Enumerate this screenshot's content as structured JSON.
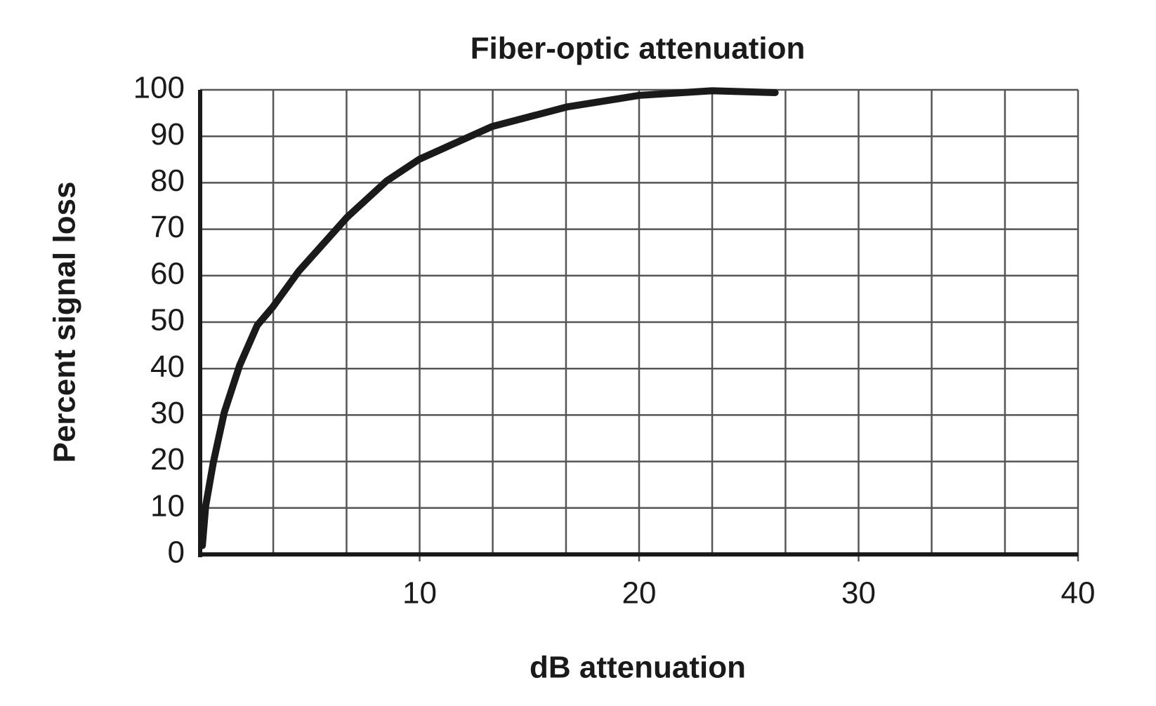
{
  "chart_data": {
    "type": "line",
    "title": "Fiber-optic attenuation",
    "x_label": "dB attenuation",
    "y_label": "Percent signal loss",
    "x": [
      0.1,
      0.25,
      0.6,
      1.1,
      1.8,
      2.6,
      3.3,
      4.5,
      6.7,
      8.5,
      10,
      13.3,
      16.7,
      20,
      23.3,
      26.2
    ],
    "series": [
      {
        "color": "#1a1a1a",
        "values": [
          1.9,
          10.4,
          19.8,
          30.6,
          40.7,
          49.3,
          53.2,
          61.0,
          72.6,
          80.4,
          85.1,
          92.1,
          96.3,
          98.8,
          99.8,
          99.4
        ]
      }
    ],
    "xlim": [
      0,
      40
    ],
    "xticks": [
      10,
      20,
      30,
      40
    ],
    "x_minor_ticks": [
      3.33,
      6.67,
      13.33,
      16.67,
      23.33,
      26.67,
      33.33,
      36.67
    ],
    "ylim": [
      0,
      100
    ],
    "yticks": [
      0,
      10,
      20,
      30,
      40,
      50,
      60,
      70,
      80,
      90,
      100
    ],
    "grid": true
  }
}
